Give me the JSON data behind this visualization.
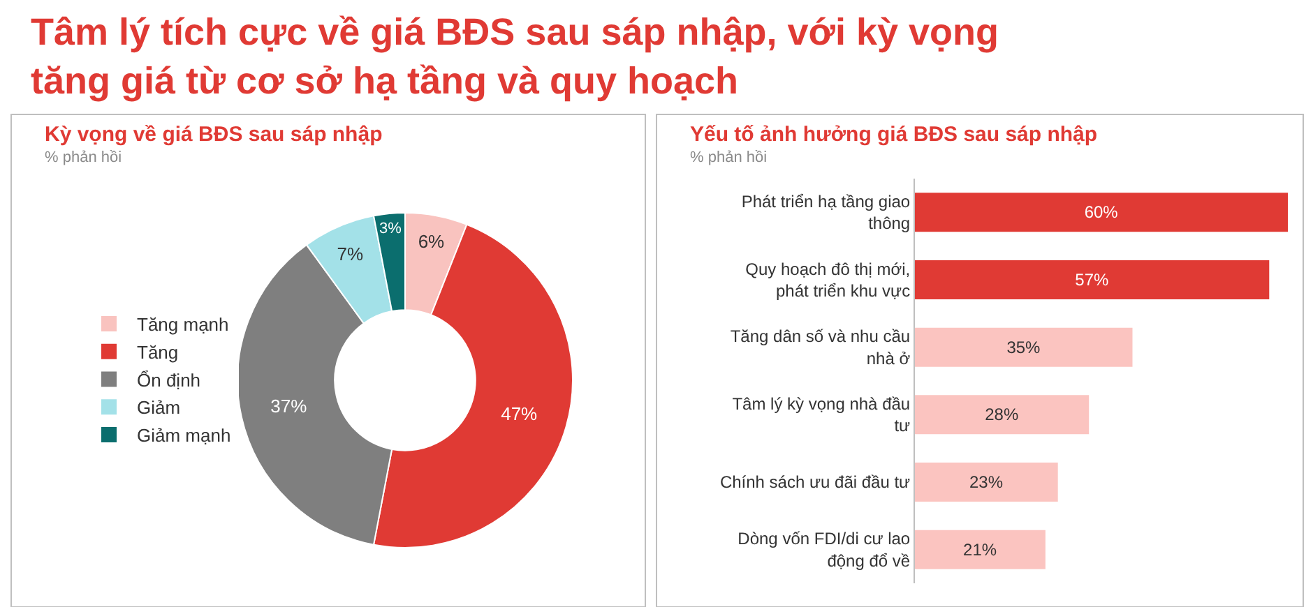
{
  "chart_data": [
    {
      "type": "other",
      "title": "Tâm lý tích cực về giá BĐS sau sáp nhập, với kỳ vọng tăng giá từ cơ sở hạ tầng và quy hoạch"
    },
    {
      "type": "donut",
      "title": "Kỳ vọng về giá BĐS sau sáp nhập",
      "subtitle": "% phản hồi",
      "categories": [
        "Tăng mạnh",
        "Tăng",
        "Ổn định",
        "Giảm",
        "Giảm mạnh"
      ],
      "values": [
        6,
        47,
        37,
        7,
        3
      ],
      "colors": [
        "#f9c3bf",
        "#e03a34",
        "#7f7f7f",
        "#a3e1e8",
        "#0b6e6e"
      ],
      "value_labels": [
        "6%",
        "47%",
        "37%",
        "7%",
        "3%"
      ],
      "legend": "left"
    },
    {
      "type": "bar",
      "orientation": "horizontal",
      "title": "Yếu tố ảnh hưởng giá BĐS sau sáp nhập",
      "subtitle": "% phản hồi",
      "categories": [
        "Phát triển hạ tầng giao thông",
        "Quy hoạch đô thị mới, phát triển khu vực",
        "Tăng dân số và nhu cầu nhà ở",
        "Tâm lý kỳ vọng nhà đầu tư",
        "Chính sách ưu đãi đầu tư",
        "Dòng vốn FDI/di cư lao động đổ về"
      ],
      "values": [
        60,
        57,
        35,
        28,
        23,
        21
      ],
      "colors": [
        "#e03a34",
        "#e03a34",
        "#fbc4c0",
        "#fbc4c0",
        "#fbc4c0",
        "#fbc4c0"
      ],
      "value_labels": [
        "60%",
        "57%",
        "35%",
        "28%",
        "23%",
        "21%"
      ],
      "legend": false
    }
  ]
}
